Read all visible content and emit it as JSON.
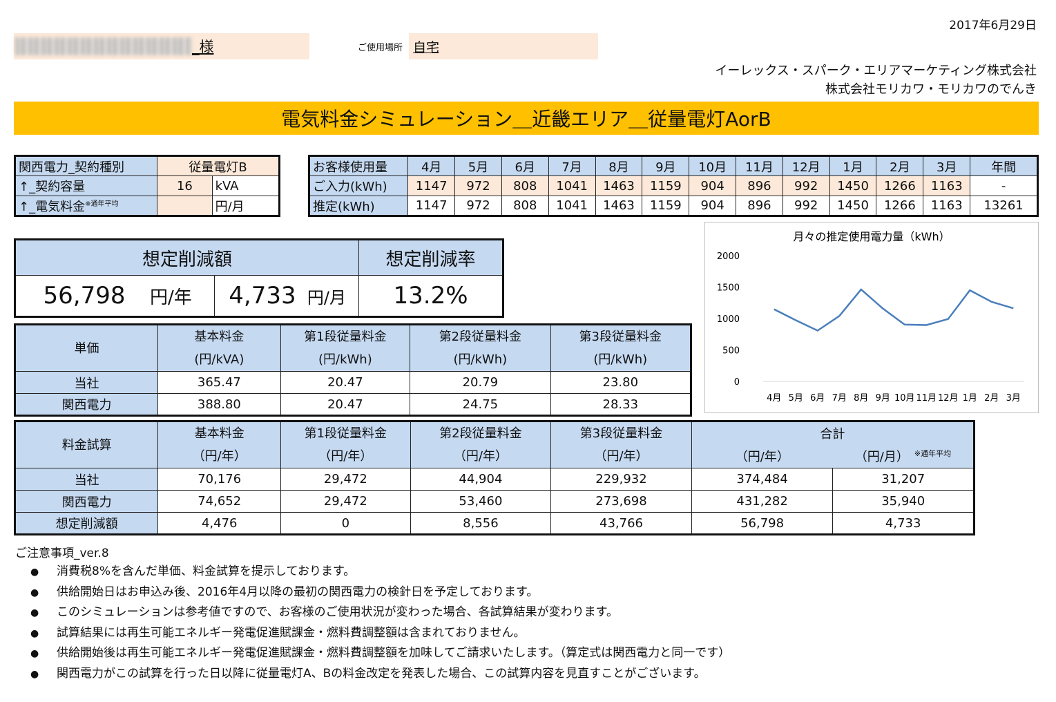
{
  "header": {
    "date": "2017年6月29日",
    "customer_suffix": "_様",
    "place_label": "ご使用場所",
    "place_value": "自宅",
    "company_1": "イーレックス・スパーク・エリアマーケティング株式会社",
    "company_2": "株式会社モリカワ・モリカワのでんき"
  },
  "banner": "電気料金シミュレーション＿近畿エリア＿従量電灯AorB",
  "contract": {
    "row1_label": "関西電力_契約種別",
    "row1_value": "従量電灯B",
    "row2_label": "↑_契約容量",
    "row2_value": "16",
    "row2_unit": "kVA",
    "row3_label": "↑_電気料金",
    "row3_note": "※通年平均",
    "row3_value": "",
    "row3_unit": "円/月"
  },
  "usage": {
    "header_label": "お客様使用量",
    "months": [
      "4月",
      "5月",
      "6月",
      "7月",
      "8月",
      "9月",
      "10月",
      "11月",
      "12月",
      "1月",
      "2月",
      "3月"
    ],
    "annual_label": "年間",
    "input_label": "ご入力(kWh)",
    "input": [
      "1147",
      "972",
      "808",
      "1041",
      "1463",
      "1159",
      "904",
      "896",
      "992",
      "1450",
      "1266",
      "1163"
    ],
    "input_annual": "-",
    "estimate_label": "推定(kWh)",
    "estimate": [
      "1147",
      "972",
      "808",
      "1041",
      "1463",
      "1159",
      "904",
      "896",
      "992",
      "1450",
      "1266",
      "1163"
    ],
    "estimate_annual": "13261"
  },
  "savings": {
    "amount_label": "想定削減額",
    "rate_label": "想定削減率",
    "yearly_value": "56,798",
    "yearly_unit": "円/年",
    "monthly_value": "4,733",
    "monthly_unit": "円/月",
    "rate_value": "13.2%"
  },
  "unit_price": {
    "header": "単価",
    "cols": [
      {
        "name": "基本料金",
        "unit": "(円/kVA)"
      },
      {
        "name": "第1段従量料金",
        "unit": "(円/kWh)"
      },
      {
        "name": "第2段従量料金",
        "unit": "(円/kWh)"
      },
      {
        "name": "第3段従量料金",
        "unit": "(円/kWh)"
      }
    ],
    "rows": [
      {
        "label": "当社",
        "values": [
          "365.47",
          "20.47",
          "20.79",
          "23.80"
        ]
      },
      {
        "label": "関西電力",
        "values": [
          "388.80",
          "20.47",
          "24.75",
          "28.33"
        ]
      }
    ]
  },
  "fee": {
    "header": "料金試算",
    "cols": [
      {
        "name": "基本料金",
        "unit": "（円/年）"
      },
      {
        "name": "第1段従量料金",
        "unit": "（円/年）"
      },
      {
        "name": "第2段従量料金",
        "unit": "（円/年）"
      },
      {
        "name": "第3段従量料金",
        "unit": "（円/年）"
      }
    ],
    "total_label": "合計",
    "total_year_unit": "（円/年）",
    "total_month_unit": "（円/月）",
    "total_month_note": "※通年平均",
    "rows": [
      {
        "label": "当社",
        "values": [
          "70,176",
          "29,472",
          "44,904",
          "229,932",
          "374,484",
          "31,207"
        ]
      },
      {
        "label": "関西電力",
        "values": [
          "74,652",
          "29,472",
          "53,460",
          "273,698",
          "431,282",
          "35,940"
        ]
      },
      {
        "label": "想定削減額",
        "values": [
          "4,476",
          "0",
          "8,556",
          "43,766",
          "56,798",
          "4,733"
        ]
      }
    ]
  },
  "chart_data": {
    "type": "line",
    "title": "月々の推定使用電力量（kWh）",
    "categories": [
      "4月",
      "5月",
      "6月",
      "7月",
      "8月",
      "9月",
      "10月",
      "11月",
      "12月",
      "1月",
      "2月",
      "3月"
    ],
    "values": [
      1147,
      972,
      808,
      1041,
      1463,
      1159,
      904,
      896,
      992,
      1450,
      1266,
      1163
    ],
    "ylim": [
      0,
      2000
    ],
    "yticks": [
      "2000",
      "1500",
      "1000",
      "500",
      "0"
    ],
    "grid": false,
    "line_color": "#4a7ebb"
  },
  "notes": {
    "title": "ご注意事項_ver.8",
    "bullet": "●",
    "items": [
      "消費税8%を含んだ単価、料金試算を提示しております。",
      "供給開始日はお申込み後、2016年4月以降の最初の関西電力の検針日を予定しております。",
      "このシミュレーションは参考値ですので、お客様のご使用状況が変わった場合、各試算結果が変わります。",
      "試算結果には再生可能エネルギー発電促進賦課金・燃料費調整額は含まれておりません。",
      "供給開始後は再生可能エネルギー発電促進賦課金・燃料費調整額を加味してご請求いたします。（算定式は関西電力と同一です）",
      "関西電力がこの試算を行った日以降に従量電灯A、Bの料金改定を発表した場合、この試算内容を見直すことがございます。"
    ]
  }
}
